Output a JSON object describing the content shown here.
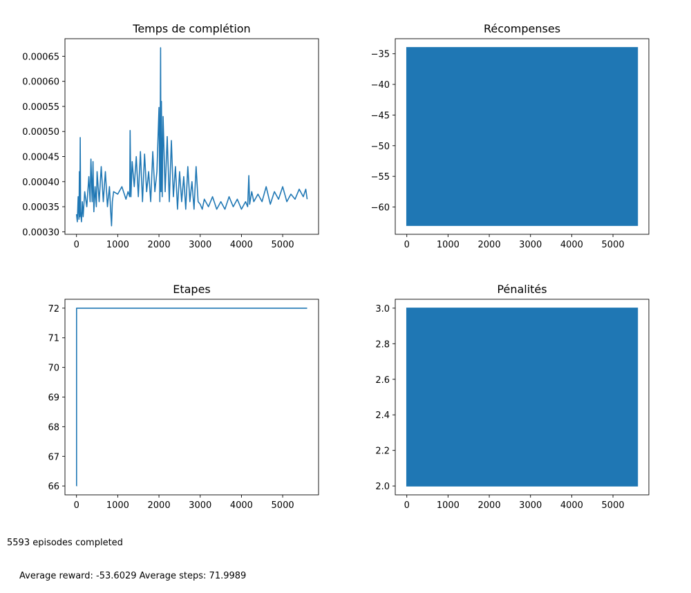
{
  "chart_data": [
    {
      "type": "line",
      "title": "Temps de complétion",
      "xlim": [
        -280,
        5870
      ],
      "ylim": [
        0.000295,
        0.000685
      ],
      "xticks": [
        0,
        1000,
        2000,
        3000,
        4000,
        5000
      ],
      "yticks": [
        0.0003,
        0.00035,
        0.0004,
        0.00045,
        0.0005,
        0.00055,
        0.0006,
        0.00065
      ],
      "ytick_labels": [
        "0.00030",
        "0.00035",
        "0.00040",
        "0.00045",
        "0.00050",
        "0.00055",
        "0.00060",
        "0.00065"
      ],
      "series": [
        {
          "color": "#1f77b4",
          "x": [
            0,
            20,
            40,
            60,
            70,
            80,
            90,
            100,
            120,
            140,
            160,
            200,
            250,
            300,
            330,
            350,
            380,
            400,
            420,
            450,
            480,
            500,
            550,
            600,
            650,
            700,
            750,
            800,
            830,
            850,
            870,
            900,
            1000,
            1100,
            1200,
            1250,
            1290,
            1300,
            1320,
            1350,
            1400,
            1450,
            1500,
            1550,
            1600,
            1650,
            1700,
            1750,
            1800,
            1850,
            1900,
            1950,
            2000,
            2020,
            2040,
            2050,
            2060,
            2080,
            2100,
            2150,
            2200,
            2250,
            2300,
            2350,
            2400,
            2450,
            2500,
            2550,
            2600,
            2650,
            2700,
            2750,
            2800,
            2850,
            2900,
            2950,
            3000,
            3050,
            3100,
            3200,
            3300,
            3400,
            3500,
            3600,
            3700,
            3800,
            3900,
            4000,
            4100,
            4150,
            4180,
            4200,
            4250,
            4300,
            4400,
            4500,
            4600,
            4700,
            4800,
            4900,
            5000,
            5100,
            5200,
            5300,
            5400,
            5500,
            5560,
            5593
          ],
          "y": [
            0.000335,
            0.00032,
            0.00037,
            0.000325,
            0.00042,
            0.00033,
            0.000488,
            0.00034,
            0.00032,
            0.00036,
            0.00033,
            0.00038,
            0.00035,
            0.00041,
            0.00036,
            0.000445,
            0.00036,
            0.00044,
            0.00034,
            0.00039,
            0.00035,
            0.00042,
            0.00036,
            0.00043,
            0.00036,
            0.00042,
            0.00035,
            0.00039,
            0.00034,
            0.000312,
            0.00036,
            0.00038,
            0.000375,
            0.00039,
            0.000365,
            0.00038,
            0.00037,
            0.000502,
            0.00037,
            0.00044,
            0.00039,
            0.00045,
            0.00037,
            0.00046,
            0.00036,
            0.000455,
            0.00038,
            0.00042,
            0.00036,
            0.00046,
            0.00038,
            0.00042,
            0.000548,
            0.00036,
            0.000667,
            0.00038,
            0.00056,
            0.00037,
            0.00053,
            0.00038,
            0.00049,
            0.00036,
            0.000482,
            0.00037,
            0.00043,
            0.000345,
            0.00042,
            0.00036,
            0.00041,
            0.000345,
            0.00043,
            0.00036,
            0.0004,
            0.000345,
            0.00043,
            0.00036,
            0.000355,
            0.000345,
            0.000365,
            0.00035,
            0.00037,
            0.000345,
            0.00036,
            0.000345,
            0.00037,
            0.00035,
            0.000365,
            0.000345,
            0.00036,
            0.00035,
            0.000412,
            0.000355,
            0.00038,
            0.00036,
            0.000375,
            0.00036,
            0.00039,
            0.000355,
            0.00038,
            0.000365,
            0.00039,
            0.00036,
            0.000375,
            0.000365,
            0.000385,
            0.00037,
            0.000385,
            0.000365
          ]
        }
      ]
    },
    {
      "type": "line",
      "title": "Récompenses",
      "xlim": [
        -280,
        5870
      ],
      "ylim": [
        -64.45,
        -32.55
      ],
      "xticks": [
        0,
        1000,
        2000,
        3000,
        4000,
        5000
      ],
      "yticks": [
        -60,
        -55,
        -50,
        -45,
        -40,
        -35
      ],
      "ytick_labels": [
        "−60",
        "−55",
        "−50",
        "−45",
        "−40",
        "−35"
      ],
      "series": [
        {
          "color": "#1f77b4",
          "fill_band": {
            "x_start": 0,
            "x_end": 5593,
            "y_min": -63,
            "y_max": -34
          }
        }
      ]
    },
    {
      "type": "line",
      "title": "Etapes",
      "xlim": [
        -280,
        5870
      ],
      "ylim": [
        65.7,
        72.3
      ],
      "xticks": [
        0,
        1000,
        2000,
        3000,
        4000,
        5000
      ],
      "yticks": [
        66,
        67,
        68,
        69,
        70,
        71,
        72
      ],
      "ytick_labels": [
        "66",
        "67",
        "68",
        "69",
        "70",
        "71",
        "72"
      ],
      "series": [
        {
          "color": "#1f77b4",
          "x": [
            0,
            1,
            2,
            5593
          ],
          "y": [
            66,
            66,
            72,
            72
          ]
        }
      ]
    },
    {
      "type": "line",
      "title": "Pénalités",
      "xlim": [
        -280,
        5870
      ],
      "ylim": [
        1.95,
        3.05
      ],
      "xticks": [
        0,
        1000,
        2000,
        3000,
        4000,
        5000
      ],
      "yticks": [
        2.0,
        2.2,
        2.4,
        2.6,
        2.8,
        3.0
      ],
      "ytick_labels": [
        "2.0",
        "2.2",
        "2.4",
        "2.6",
        "2.8",
        "3.0"
      ],
      "series": [
        {
          "color": "#1f77b4",
          "fill_band": {
            "x_start": 0,
            "x_end": 5593,
            "y_min": 2,
            "y_max": 3
          }
        }
      ]
    }
  ],
  "summary": {
    "line1": "5593 episodes completed",
    "line2": "Average reward: -53.6029 Average steps: 71.9989"
  }
}
